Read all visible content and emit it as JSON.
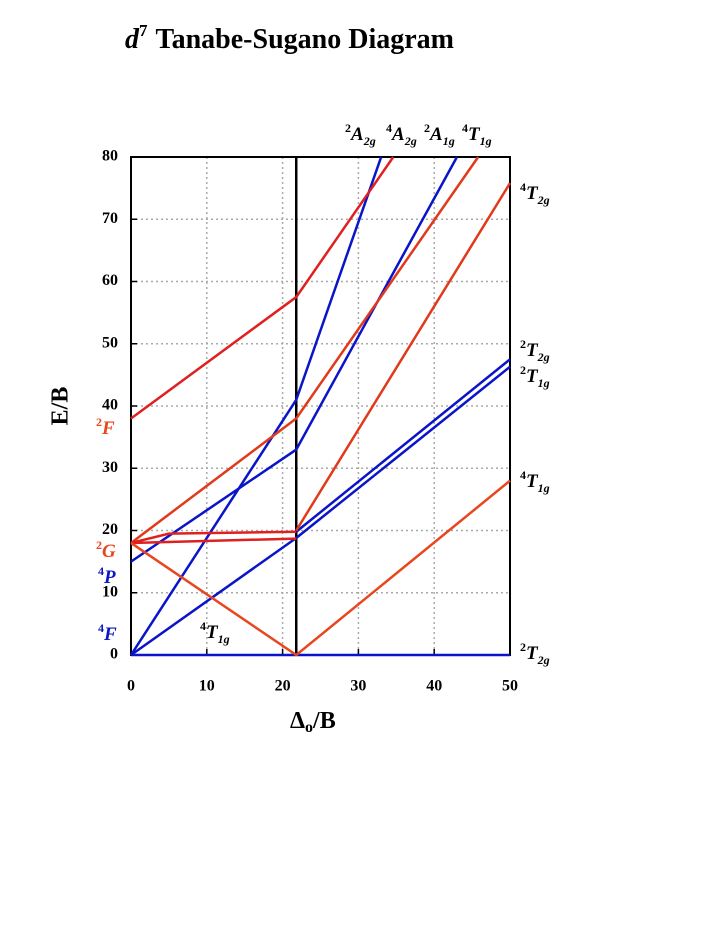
{
  "chart_data": {
    "type": "line",
    "title": {
      "italic": "d",
      "sup": "7",
      "text": "Tanabe-Sugano Diagram"
    },
    "y_label": "E/B",
    "x_label": {
      "main": "Δ",
      "sub": "o",
      "rest": "/B"
    },
    "xlim": [
      0,
      50
    ],
    "ylim": [
      0,
      80
    ],
    "xticks": [
      0,
      10,
      20,
      30,
      40,
      50
    ],
    "yticks": [
      0,
      10,
      20,
      30,
      40,
      50,
      60,
      70,
      80
    ],
    "grid": true,
    "vline": 21.8,
    "series": [
      {
        "color": "#0a14c8",
        "x": [
          0,
          50
        ],
        "values": [
          0,
          0
        ]
      },
      {
        "color": "#0a14c8",
        "x": [
          0,
          21.8,
          50
        ],
        "values": [
          0,
          18.8,
          46.3
        ]
      },
      {
        "color": "#0a14c8",
        "x": [
          21.8,
          50
        ],
        "values": [
          19.8,
          47.5
        ]
      },
      {
        "color": "#0a14c8",
        "x": [
          0,
          21.8,
          43
        ],
        "values": [
          15,
          33,
          80
        ]
      },
      {
        "color": "#0a14c8",
        "x": [
          0,
          21.8,
          33
        ],
        "values": [
          0,
          41,
          80
        ]
      },
      {
        "color": "#e02020",
        "x": [
          0,
          21.8,
          34.6
        ],
        "values": [
          38,
          57.5,
          80
        ]
      },
      {
        "color": "#e03a1a",
        "x": [
          0,
          21.8,
          45.8
        ],
        "values": [
          18,
          38,
          80
        ]
      },
      {
        "color": "#e03a1a",
        "x": [
          21.8,
          50
        ],
        "values": [
          20,
          75.8
        ]
      },
      {
        "color": "#e02020",
        "x": [
          0,
          5,
          21.8
        ],
        "values": [
          18,
          19.5,
          19.8
        ]
      },
      {
        "color": "#e02020",
        "x": [
          0,
          21.8
        ],
        "values": [
          18,
          18.7
        ]
      },
      {
        "color": "#e8461e",
        "x": [
          0,
          21.8,
          50
        ],
        "values": [
          18,
          0,
          28
        ]
      }
    ],
    "term_labels": [
      {
        "spin": "2",
        "letter": "F",
        "sub": "",
        "color": "#e8461e"
      },
      {
        "spin": "2",
        "letter": "G",
        "sub": "",
        "color": "#e8461e"
      },
      {
        "spin": "4",
        "letter": "P",
        "sub": "",
        "color": "#0a14c8"
      },
      {
        "spin": "4",
        "letter": "F",
        "sub": "",
        "color": "#0a14c8"
      },
      {
        "spin": "4",
        "letter": "T",
        "sub": "1g",
        "color": "#000000"
      },
      {
        "spin": "2",
        "letter": "A",
        "sub": "2g",
        "color": "#000000"
      },
      {
        "spin": "4",
        "letter": "A",
        "sub": "2g",
        "color": "#000000"
      },
      {
        "spin": "2",
        "letter": "A",
        "sub": "1g",
        "color": "#000000"
      },
      {
        "spin": "4",
        "letter": "T",
        "sub": "1g",
        "color": "#000000"
      },
      {
        "spin": "4",
        "letter": "T",
        "sub": "2g",
        "color": "#000000"
      },
      {
        "spin": "2",
        "letter": "T",
        "sub": "2g",
        "color": "#000000"
      },
      {
        "spin": "2",
        "letter": "T",
        "sub": "1g",
        "color": "#000000"
      },
      {
        "spin": "4",
        "letter": "T",
        "sub": "1g",
        "color": "#000000"
      },
      {
        "spin": "2",
        "letter": "T",
        "sub": "2g",
        "color": "#000000"
      }
    ]
  }
}
